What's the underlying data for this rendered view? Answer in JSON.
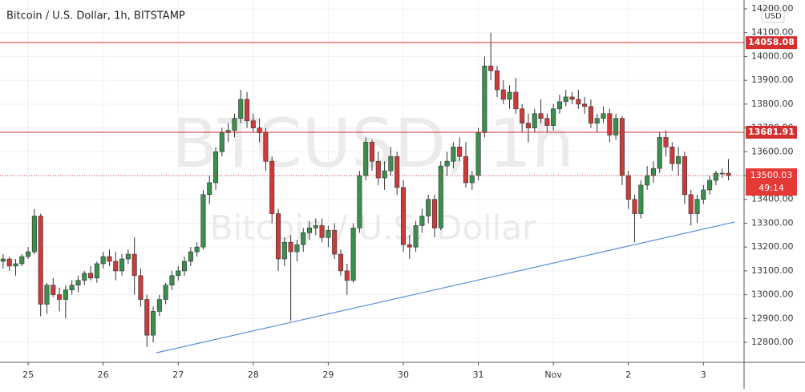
{
  "chart_data": {
    "type": "candlestick",
    "title": "Bitcoin / U.S. Dollar, 1h, BITSTAMP",
    "watermark": "BTCUSD, 1h",
    "watermark_subtitle": "Bitcoin / U.S. Dollar",
    "currency": "USD",
    "countdown": "49:14",
    "up_color": "#3b8e4b",
    "down_color": "#cc3a3a",
    "grid": true,
    "categories": [
      null,
      null,
      null,
      null,
      "25",
      null,
      null,
      null,
      null,
      null,
      null,
      null,
      null,
      null,
      null,
      null,
      "26",
      null,
      null,
      null,
      null,
      null,
      null,
      null,
      null,
      null,
      null,
      null,
      "27",
      null,
      null,
      null,
      null,
      null,
      null,
      null,
      null,
      null,
      null,
      null,
      "28",
      null,
      null,
      null,
      null,
      null,
      null,
      null,
      null,
      null,
      null,
      null,
      "29",
      null,
      null,
      null,
      null,
      null,
      null,
      null,
      null,
      null,
      null,
      null,
      "30",
      null,
      null,
      null,
      null,
      null,
      null,
      null,
      null,
      null,
      null,
      null,
      "31",
      null,
      null,
      null,
      null,
      null,
      null,
      null,
      null,
      null,
      null,
      null,
      "Nov",
      null,
      null,
      null,
      null,
      null,
      null,
      null,
      null,
      null,
      null,
      null,
      "2",
      null,
      null,
      null,
      null,
      null,
      null,
      null,
      null,
      null,
      null,
      null,
      "3",
      null,
      null,
      null,
      null
    ],
    "open": [
      13140,
      13150,
      13120,
      13130,
      13160,
      13180,
      13330,
      12960,
      13040,
      13000,
      12980,
      13020,
      13040,
      13060,
      13090,
      13070,
      13130,
      13160,
      13140,
      13100,
      13150,
      13170,
      13080,
      12980,
      12830,
      12930,
      12980,
      13040,
      13080,
      13100,
      13140,
      13180,
      13200,
      13420,
      13470,
      13600,
      13680,
      13690,
      13740,
      13820,
      13730,
      13700,
      13680,
      13560,
      13340,
      13150,
      13220,
      13180,
      13210,
      13260,
      13280,
      13290,
      13240,
      13270,
      13170,
      13100,
      13060,
      13280,
      13500,
      13640,
      13560,
      13490,
      13520,
      13580,
      13450,
      13210,
      13200,
      13290,
      13330,
      13400,
      13280,
      13540,
      13560,
      13620,
      13580,
      13470,
      13500,
      13680,
      13960,
      13940,
      13860,
      13820,
      13850,
      13780,
      13720,
      13700,
      13760,
      13740,
      13710,
      13780,
      13810,
      13830,
      13820,
      13800,
      13790,
      13720,
      13740,
      13760,
      13670,
      13740,
      13500,
      13400,
      13340,
      13460,
      13500,
      13530,
      13660,
      13620,
      13550,
      13580,
      13420,
      13340,
      13400,
      13440,
      13480,
      13510,
      13510
    ],
    "high": [
      13170,
      13160,
      13150,
      13170,
      13200,
      13360,
      13340,
      13050,
      13070,
      13030,
      13040,
      13060,
      13080,
      13100,
      13120,
      13140,
      13180,
      13190,
      13180,
      13170,
      13190,
      13240,
      13110,
      13000,
      12950,
      13000,
      13050,
      13100,
      13120,
      13160,
      13200,
      13220,
      13440,
      13500,
      13620,
      13700,
      13720,
      13760,
      13860,
      13850,
      13760,
      13740,
      13700,
      13580,
      13360,
      13240,
      13250,
      13230,
      13280,
      13310,
      13320,
      13320,
      13290,
      13300,
      13190,
      13130,
      13300,
      13520,
      13660,
      13650,
      13600,
      13560,
      13620,
      13600,
      13480,
      13250,
      13310,
      13360,
      13420,
      13420,
      13560,
      13600,
      13640,
      13660,
      13640,
      13520,
      13700,
      14000,
      14100,
      13960,
      13900,
      13880,
      13910,
      13800,
      13760,
      13780,
      13820,
      13760,
      13800,
      13840,
      13860,
      13850,
      13860,
      13830,
      13820,
      13760,
      13790,
      13780,
      13760,
      13750,
      13520,
      13420,
      13480,
      13540,
      13560,
      13680,
      13690,
      13640,
      13620,
      13600,
      13440,
      13420,
      13460,
      13500,
      13520,
      13530,
      13570
    ],
    "low": [
      13110,
      13100,
      13080,
      13120,
      13150,
      13170,
      12910,
      12920,
      12990,
      12930,
      12900,
      13000,
      13010,
      13040,
      13060,
      13050,
      13110,
      13120,
      13060,
      13080,
      13130,
      13000,
      12950,
      12780,
      12800,
      12910,
      12960,
      13020,
      13060,
      13080,
      13120,
      13160,
      13190,
      13380,
      13440,
      13580,
      13640,
      13660,
      13720,
      13700,
      13680,
      13640,
      13520,
      13300,
      13100,
      13120,
      12890,
      13140,
      13180,
      13230,
      13250,
      13220,
      13200,
      13150,
      13080,
      13000,
      13050,
      13260,
      13480,
      13520,
      13460,
      13440,
      13500,
      13420,
      13180,
      13150,
      13180,
      13260,
      13300,
      13240,
      13270,
      13500,
      13530,
      13560,
      13450,
      13440,
      13480,
      13660,
      13900,
      13830,
      13800,
      13780,
      13760,
      13680,
      13640,
      13680,
      13720,
      13680,
      13690,
      13760,
      13790,
      13800,
      13780,
      13760,
      13700,
      13680,
      13720,
      13640,
      13650,
      13460,
      13360,
      13220,
      13320,
      13440,
      13470,
      13510,
      13580,
      13520,
      13500,
      13380,
      13290,
      13300,
      13380,
      13420,
      13460,
      13490,
      13480
    ],
    "close": [
      13150,
      13120,
      13130,
      13160,
      13180,
      13330,
      12960,
      13040,
      13000,
      12980,
      13020,
      13040,
      13060,
      13090,
      13070,
      13130,
      13160,
      13140,
      13100,
      13150,
      13170,
      13080,
      12980,
      12830,
      12930,
      12980,
      13040,
      13080,
      13100,
      13140,
      13180,
      13200,
      13420,
      13470,
      13600,
      13680,
      13690,
      13740,
      13820,
      13730,
      13700,
      13680,
      13560,
      13340,
      13150,
      13220,
      13180,
      13210,
      13260,
      13280,
      13290,
      13240,
      13270,
      13170,
      13100,
      13060,
      13280,
      13500,
      13640,
      13560,
      13490,
      13520,
      13580,
      13450,
      13210,
      13200,
      13290,
      13330,
      13400,
      13280,
      13540,
      13560,
      13620,
      13580,
      13470,
      13500,
      13680,
      13960,
      13940,
      13860,
      13820,
      13850,
      13780,
      13720,
      13700,
      13760,
      13740,
      13710,
      13780,
      13810,
      13830,
      13820,
      13800,
      13790,
      13720,
      13740,
      13760,
      13670,
      13740,
      13500,
      13400,
      13340,
      13460,
      13500,
      13530,
      13660,
      13620,
      13550,
      13580,
      13420,
      13340,
      13400,
      13440,
      13480,
      13510,
      13510,
      13500.03
    ],
    "ylim": [
      12716,
      14237
    ],
    "yticks": [
      {
        "value": 12800,
        "label": "12800.00"
      },
      {
        "value": 12900,
        "label": "12900.00"
      },
      {
        "value": 13000,
        "label": "13000.00"
      },
      {
        "value": 13100,
        "label": "13100.00"
      },
      {
        "value": 13200,
        "label": "13200.00"
      },
      {
        "value": 13300,
        "label": "13300.00"
      },
      {
        "value": 13400,
        "label": "13400.00"
      },
      {
        "value": 13500,
        "label": "13500.00"
      },
      {
        "value": 13600,
        "label": "13600.00"
      },
      {
        "value": 13700,
        "label": "13700.00"
      },
      {
        "value": 13800,
        "label": "13800.00"
      },
      {
        "value": 13900,
        "label": "13900.00"
      },
      {
        "value": 14000,
        "label": "14000.00"
      },
      {
        "value": 14100,
        "label": "14100.00"
      },
      {
        "value": 14200,
        "label": "14200.00"
      }
    ],
    "levels": [
      {
        "value": 14058.08,
        "color": "#d32f2f"
      },
      {
        "value": 13681.91,
        "color": "#d32f2f"
      }
    ],
    "last_price": {
      "value": 13500.03,
      "color": "#e53935"
    },
    "trendline": {
      "color": "#5b8fd6",
      "points": [
        [
          24.5,
          12756
        ],
        [
          117,
          13305
        ]
      ]
    }
  }
}
